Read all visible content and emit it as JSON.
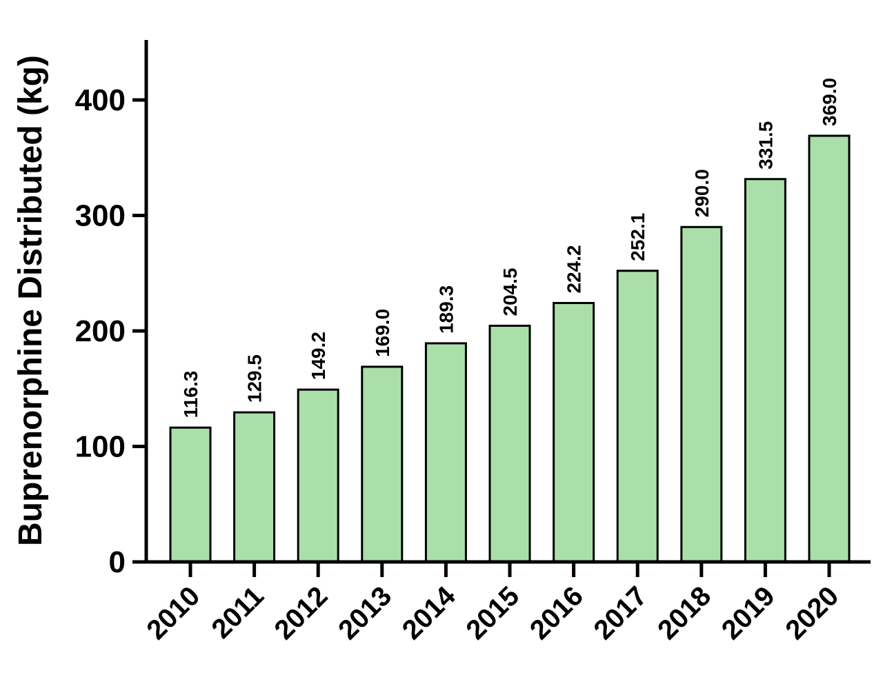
{
  "chart_data": {
    "type": "bar",
    "title": "",
    "xlabel": "",
    "ylabel": "Buprenorphine Distributed (kg)",
    "ylim": [
      0,
      450
    ],
    "yticks": [
      0,
      100,
      200,
      300,
      400
    ],
    "ytick_labels": [
      "0",
      "100",
      "200",
      "300",
      "400"
    ],
    "categories": [
      "2010",
      "2011",
      "2012",
      "2013",
      "2014",
      "2015",
      "2016",
      "2017",
      "2018",
      "2019",
      "2020"
    ],
    "values": [
      116.3,
      129.5,
      149.2,
      169.0,
      189.3,
      204.5,
      224.2,
      252.1,
      290.0,
      331.5,
      369.0
    ],
    "data_labels": [
      "116.3",
      "129.5",
      "149.2",
      "169.0",
      "189.3",
      "204.5",
      "224.2",
      "252.1",
      "290.0",
      "331.5",
      "369.0"
    ],
    "bar_color": "#aadfaa",
    "bar_edge_color": "#000000",
    "grid": false,
    "legend": "none"
  }
}
